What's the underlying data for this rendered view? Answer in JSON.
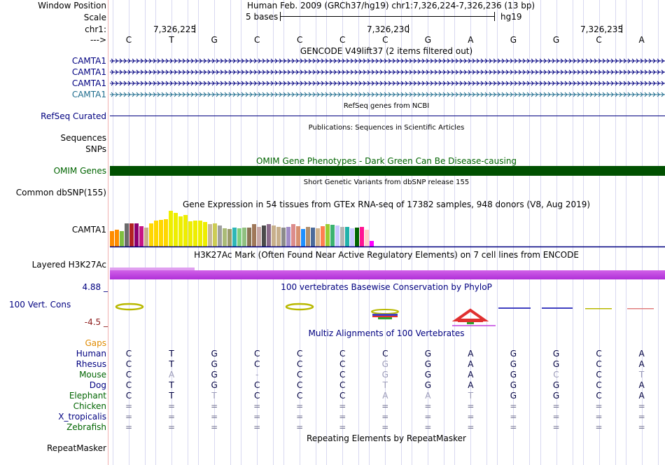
{
  "header": {
    "window_position_label": "Window Position",
    "window_position_value": "Human Feb. 2009 (GRCh37/hg19)   chr1:7,326,224-7,326,236 (13 bp)",
    "scale_label": "Scale",
    "scale_bases": "5 bases",
    "scale_assembly": "hg19",
    "chrom_label": "chr1:",
    "strand_label": "--->",
    "coordinates": [
      "7,326,225",
      "7,326,230",
      "7,326,235"
    ]
  },
  "sequence": [
    "C",
    "T",
    "G",
    "C",
    "C",
    "C",
    "C",
    "G",
    "A",
    "G",
    "G",
    "C",
    "A"
  ],
  "gencode": {
    "title": "GENCODE V49lift37 (2 items filtered out)",
    "genes": [
      "CAMTA1",
      "CAMTA1",
      "CAMTA1",
      "CAMTA1"
    ]
  },
  "refseq": {
    "label": "RefSeq Curated",
    "title": "RefSeq genes from NCBI"
  },
  "publications": {
    "title": "Publications: Sequences in Scientific Articles"
  },
  "sequences_label": "Sequences",
  "snps_label": "SNPs",
  "omim": {
    "label": "OMIM Genes",
    "title": "OMIM Gene Phenotypes - Dark Green Can Be Disease-causing"
  },
  "dbsnp": {
    "label": "Common dbSNP(155)",
    "title": "Short Genetic Variants from dbSNP release 155"
  },
  "gtex": {
    "label": "CAMTA1",
    "title": "Gene Expression in 54 tissues from GTEx RNA-seq of 17382 samples, 948 donors (V8, Aug 2019)"
  },
  "h3k27ac": {
    "label": "Layered H3K27Ac",
    "title": "H3K27Ac Mark (Often Found Near Active Regulatory Elements) on 7 cell lines from ENCODE"
  },
  "conservation": {
    "label": "100 Vert. Cons",
    "max_label": "4.88 _",
    "min_label": "-4.5 _",
    "title": "100 vertebrates Basewise Conservation by PhyloP"
  },
  "multiz": {
    "title": "Multiz Alignments of 100 Vertebrates",
    "gaps_label": "Gaps",
    "species": [
      {
        "name": "Human",
        "bases": [
          "C",
          "T",
          "G",
          "C",
          "C",
          "C",
          "C",
          "G",
          "A",
          "G",
          "G",
          "C",
          "A"
        ]
      },
      {
        "name": "Rhesus",
        "bases": [
          "C",
          "T",
          "G",
          "C",
          "C",
          "C",
          "G",
          "G",
          "A",
          "G",
          "G",
          "C",
          "A"
        ]
      },
      {
        "name": "Mouse",
        "bases": [
          "C",
          "A",
          "G",
          "-",
          "C",
          "C",
          "G",
          "G",
          "A",
          "G",
          "C",
          "C",
          "T"
        ]
      },
      {
        "name": "Dog",
        "bases": [
          "C",
          "T",
          "G",
          "C",
          "C",
          "C",
          "T",
          "G",
          "A",
          "G",
          "G",
          "C",
          "A"
        ]
      },
      {
        "name": "Elephant",
        "bases": [
          "C",
          "T",
          "T",
          "C",
          "C",
          "C",
          "A",
          "A",
          "T",
          "G",
          "G",
          "C",
          "A"
        ]
      },
      {
        "name": "Chicken",
        "bases": [
          "=",
          "=",
          "=",
          "=",
          "=",
          "=",
          "=",
          "=",
          "=",
          "=",
          "=",
          "=",
          "="
        ]
      },
      {
        "name": "X_tropicalis",
        "bases": [
          "=",
          "=",
          "=",
          "=",
          "=",
          "=",
          "=",
          "=",
          "=",
          "=",
          "=",
          "=",
          "="
        ]
      },
      {
        "name": "Zebrafish",
        "bases": [
          "=",
          "=",
          "=",
          "=",
          "=",
          "=",
          "=",
          "=",
          "=",
          "=",
          "=",
          "=",
          "="
        ]
      }
    ]
  },
  "repeatmasker": {
    "label": "RepeatMasker",
    "title": "Repeating Elements by RepeatMasker"
  },
  "colors": {
    "label_navy": "#000080",
    "omim_green": "#005000",
    "h3k27ac_magenta": "#c040e0",
    "gaps_orange": "#e08a00"
  }
}
